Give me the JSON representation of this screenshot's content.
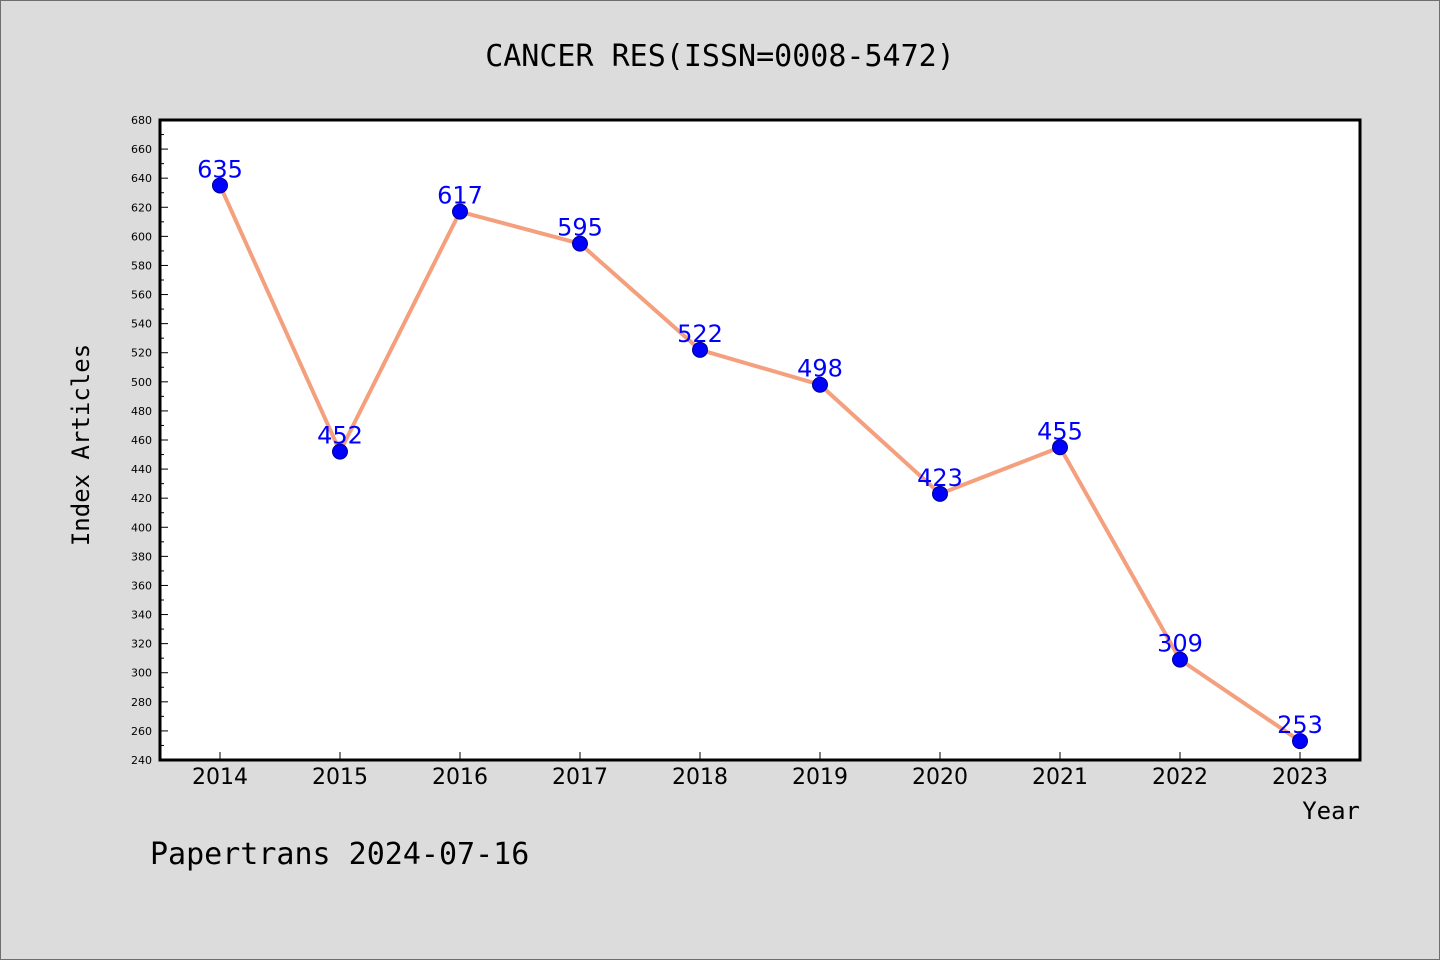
{
  "footer": "Papertrans 2024-07-16",
  "colors": {
    "line": "#f4a07e",
    "marker": "#0000ff",
    "label": "#0000ff",
    "background": "#dcdcdc",
    "plot_background": "#ffffff"
  },
  "chart_data": {
    "type": "line",
    "title": "CANCER RES(ISSN=0008-5472)",
    "xlabel": "Year",
    "ylabel": "Index Articles",
    "categories": [
      "2014",
      "2015",
      "2016",
      "2017",
      "2018",
      "2019",
      "2020",
      "2021",
      "2022",
      "2023"
    ],
    "values": [
      635,
      452,
      617,
      595,
      522,
      498,
      423,
      455,
      309,
      253
    ],
    "ylim": [
      240,
      680
    ],
    "yticks": [
      240,
      260,
      280,
      300,
      320,
      340,
      360,
      380,
      400,
      420,
      440,
      460,
      480,
      500,
      520,
      540,
      560,
      580,
      600,
      620,
      640,
      660,
      680
    ],
    "grid": false,
    "data_labels": true
  }
}
